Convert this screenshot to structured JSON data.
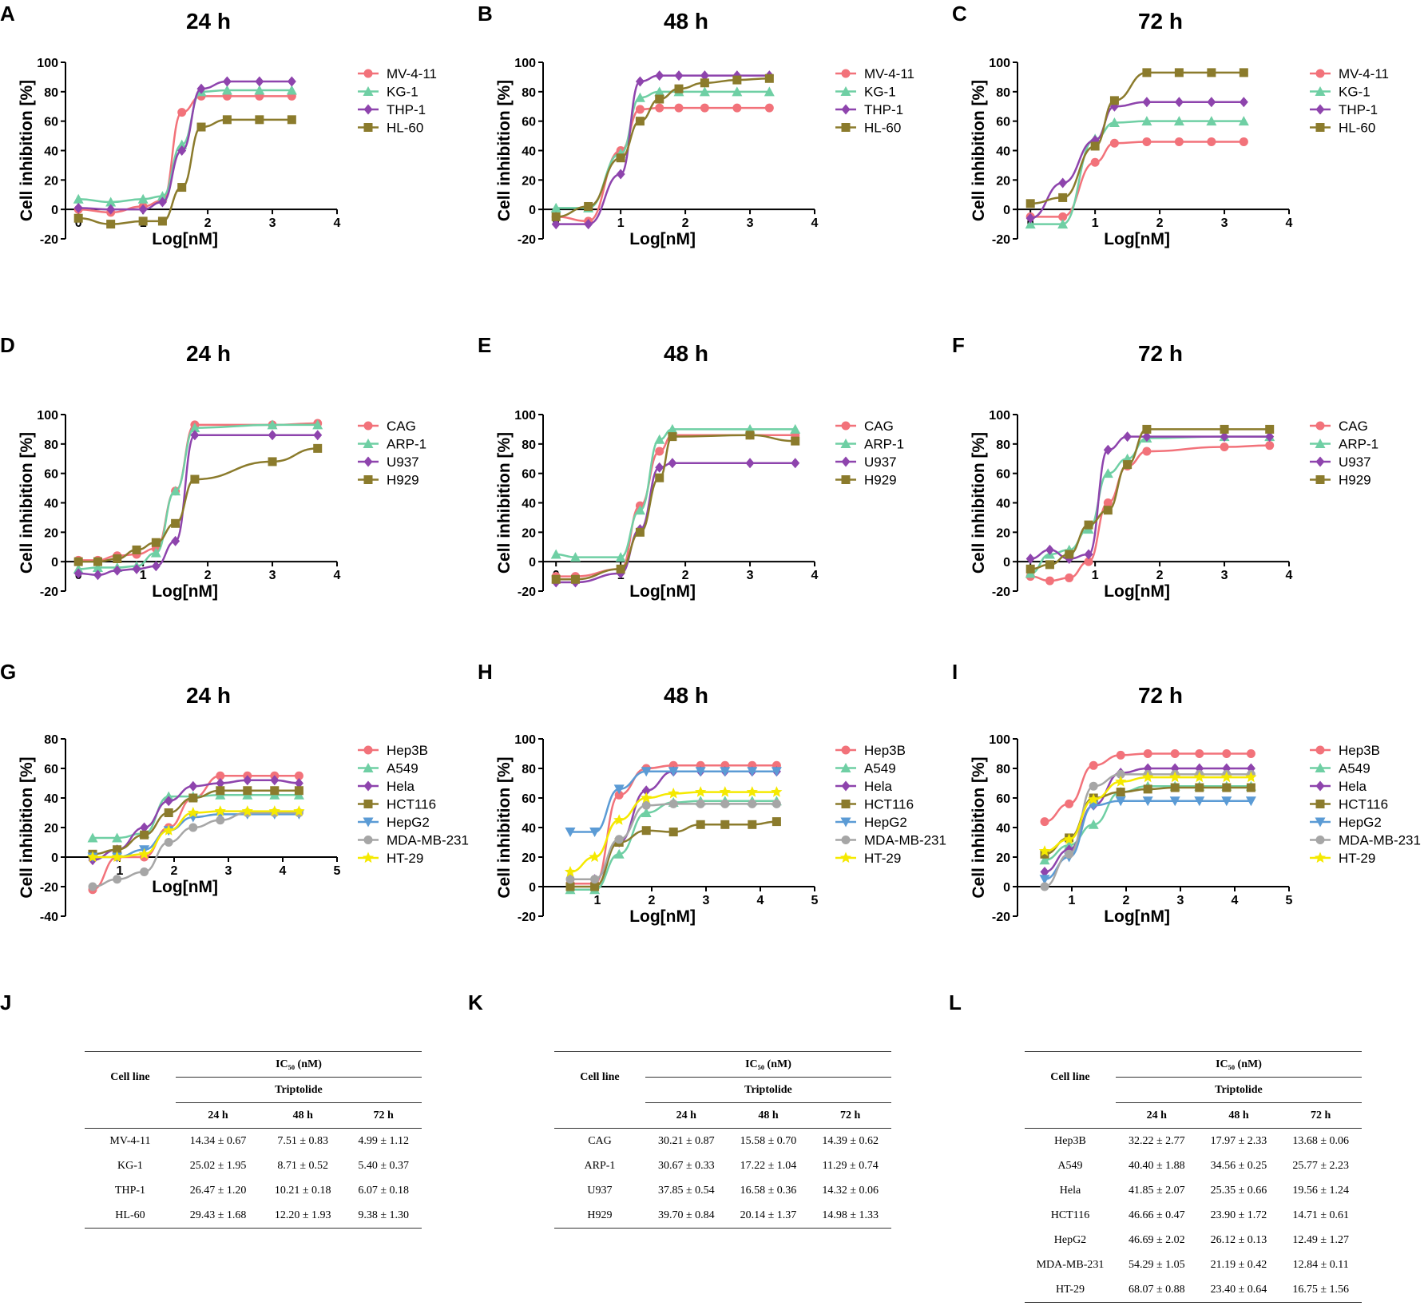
{
  "figure": {
    "axis_title_y": "Cell inhibition [%]",
    "axis_title_x": "Log[nM]"
  },
  "colors": [
    "#f2727a",
    "#6fcfa4",
    "#8e44ad",
    "#8b7b2c",
    "#5b9bd5",
    "#a6a6a6",
    "#f5e900"
  ],
  "markers": [
    "circle",
    "triangle-up",
    "diamond",
    "square",
    "triangle-down",
    "circle",
    "star"
  ],
  "chart_data": [
    {
      "panel": "A",
      "type": "line",
      "title": "24 h",
      "xlabel": "Log[nM]",
      "ylabel": "Cell inhibition [%]",
      "xlim": [
        -0.2,
        4
      ],
      "ylim": [
        -20,
        100
      ],
      "xticks": [
        0,
        1,
        2,
        3,
        4
      ],
      "yticks": [
        -20,
        0,
        20,
        40,
        60,
        80,
        100
      ],
      "x": [
        0,
        0.5,
        1,
        1.3,
        1.6,
        1.9,
        2.3,
        2.8,
        3.3
      ],
      "series": [
        {
          "name": "MV-4-11",
          "values": [
            0,
            -2,
            2,
            6,
            66,
            77,
            77,
            77,
            77
          ]
        },
        {
          "name": "KG-1",
          "values": [
            7,
            5,
            7,
            9,
            44,
            80,
            81,
            81,
            81
          ]
        },
        {
          "name": "THP-1",
          "values": [
            1,
            0,
            0,
            5,
            40,
            82,
            87,
            87,
            87
          ]
        },
        {
          "name": "HL-60",
          "values": [
            -6,
            -10,
            -8,
            -8,
            15,
            56,
            61,
            61,
            61
          ]
        }
      ]
    },
    {
      "panel": "B",
      "type": "line",
      "title": "48 h",
      "xlabel": "Log[nM]",
      "ylabel": "Cell inhibition [%]",
      "xlim": [
        -0.2,
        4
      ],
      "ylim": [
        -20,
        100
      ],
      "xticks": [
        0,
        1,
        2,
        3,
        4
      ],
      "yticks": [
        -20,
        0,
        20,
        40,
        60,
        80,
        100
      ],
      "x": [
        0,
        0.5,
        1,
        1.3,
        1.6,
        1.9,
        2.3,
        2.8,
        3.3
      ],
      "series": [
        {
          "name": "MV-4-11",
          "values": [
            -5,
            -8,
            40,
            68,
            69,
            69,
            69,
            69,
            69
          ]
        },
        {
          "name": "KG-1",
          "values": [
            1,
            1,
            38,
            76,
            80,
            80,
            80,
            80,
            80
          ]
        },
        {
          "name": "THP-1",
          "values": [
            -10,
            -10,
            24,
            87,
            91,
            91,
            91,
            91,
            91
          ]
        },
        {
          "name": "HL-60",
          "values": [
            -5,
            2,
            35,
            60,
            75,
            82,
            86,
            88,
            89
          ]
        }
      ]
    },
    {
      "panel": "C",
      "type": "line",
      "title": "72 h",
      "xlabel": "Log[nM]",
      "ylabel": "Cell inhibition [%]",
      "xlim": [
        -0.2,
        4
      ],
      "ylim": [
        -20,
        100
      ],
      "xticks": [
        0,
        1,
        2,
        3,
        4
      ],
      "yticks": [
        -20,
        0,
        20,
        40,
        60,
        80,
        100
      ],
      "x": [
        0,
        0.5,
        1,
        1.3,
        1.8,
        2.3,
        2.8,
        3.3
      ],
      "series": [
        {
          "name": "MV-4-11",
          "values": [
            -5,
            -5,
            32,
            45,
            46,
            46,
            46,
            46
          ]
        },
        {
          "name": "KG-1",
          "values": [
            -10,
            -10,
            48,
            59,
            60,
            60,
            60,
            60
          ]
        },
        {
          "name": "THP-1",
          "values": [
            -6,
            18,
            47,
            70,
            73,
            73,
            73,
            73
          ]
        },
        {
          "name": "HL-60",
          "values": [
            4,
            8,
            43,
            74,
            93,
            93,
            93,
            93
          ]
        }
      ]
    },
    {
      "panel": "D",
      "type": "line",
      "title": "24 h",
      "xlabel": "Log[nM]",
      "ylabel": "Cell inhibition [%]",
      "xlim": [
        -0.2,
        4
      ],
      "ylim": [
        -20,
        100
      ],
      "xticks": [
        0,
        1,
        2,
        3,
        4
      ],
      "yticks": [
        -20,
        0,
        20,
        40,
        60,
        80,
        100
      ],
      "x": [
        0,
        0.3,
        0.6,
        0.9,
        1.2,
        1.5,
        1.8,
        3,
        3.7
      ],
      "series": [
        {
          "name": "CAG",
          "values": [
            1,
            1,
            4,
            5,
            9,
            48,
            93,
            93,
            94
          ]
        },
        {
          "name": "ARP-1",
          "values": [
            -5,
            -4,
            -4,
            -3,
            6,
            48,
            91,
            93,
            93
          ]
        },
        {
          "name": "U937",
          "values": [
            -8,
            -9,
            -6,
            -5,
            -3,
            14,
            86,
            86,
            86
          ]
        },
        {
          "name": "H929",
          "values": [
            0,
            0,
            2,
            8,
            13,
            26,
            56,
            68,
            77
          ]
        }
      ]
    },
    {
      "panel": "E",
      "type": "line",
      "title": "48 h",
      "xlabel": "Log[nM]",
      "ylabel": "Cell inhibition [%]",
      "xlim": [
        -0.2,
        4
      ],
      "ylim": [
        -20,
        100
      ],
      "xticks": [
        0,
        1,
        2,
        3,
        4
      ],
      "yticks": [
        -20,
        0,
        20,
        40,
        60,
        80,
        100
      ],
      "x": [
        0,
        0.3,
        1,
        1.3,
        1.6,
        1.8,
        3,
        3.7
      ],
      "series": [
        {
          "name": "CAG",
          "values": [
            -10,
            -10,
            -5,
            38,
            75,
            86,
            86,
            86
          ]
        },
        {
          "name": "ARP-1",
          "values": [
            5,
            3,
            3,
            35,
            83,
            90,
            90,
            90
          ]
        },
        {
          "name": "U937",
          "values": [
            -14,
            -14,
            -8,
            22,
            64,
            67,
            67,
            67
          ]
        },
        {
          "name": "H929",
          "values": [
            -12,
            -12,
            -5,
            20,
            57,
            85,
            86,
            82
          ]
        }
      ]
    },
    {
      "panel": "F",
      "type": "line",
      "title": "72 h",
      "xlabel": "Log[nM]",
      "ylabel": "Cell inhibition [%]",
      "xlim": [
        -0.2,
        4
      ],
      "ylim": [
        -20,
        100
      ],
      "xticks": [
        0,
        1,
        2,
        3,
        4
      ],
      "yticks": [
        -20,
        0,
        20,
        40,
        60,
        80,
        100
      ],
      "x": [
        0,
        0.3,
        0.6,
        0.9,
        1.2,
        1.5,
        1.8,
        3,
        3.7
      ],
      "series": [
        {
          "name": "CAG",
          "values": [
            -10,
            -13,
            -11,
            0,
            40,
            65,
            75,
            78,
            79
          ]
        },
        {
          "name": "ARP-1",
          "values": [
            -8,
            5,
            8,
            22,
            60,
            70,
            84,
            85,
            85
          ]
        },
        {
          "name": "U937",
          "values": [
            2,
            8,
            2,
            5,
            76,
            85,
            85,
            85,
            85
          ]
        },
        {
          "name": "H929",
          "values": [
            -5,
            -2,
            5,
            25,
            35,
            66,
            90,
            90,
            90
          ]
        }
      ]
    },
    {
      "panel": "G",
      "type": "line",
      "title": "24 h",
      "xlabel": "Log[nM]",
      "ylabel": "Cell inhibition [%]",
      "xlim": [
        0,
        5
      ],
      "ylim": [
        -40,
        80
      ],
      "xticks": [
        1,
        2,
        3,
        4,
        5
      ],
      "yticks": [
        -40,
        -20,
        0,
        20,
        40,
        60,
        80
      ],
      "x": [
        0.5,
        0.95,
        1.45,
        1.9,
        2.35,
        2.85,
        3.35,
        3.85,
        4.3
      ],
      "series": [
        {
          "name": "Hep3B",
          "values": [
            -22,
            0,
            0,
            20,
            40,
            55,
            55,
            55,
            55
          ]
        },
        {
          "name": "A549",
          "values": [
            13,
            13,
            16,
            41,
            41,
            42,
            42,
            42,
            42
          ]
        },
        {
          "name": "Hela",
          "values": [
            -2,
            5,
            20,
            38,
            48,
            50,
            52,
            52,
            50
          ]
        },
        {
          "name": "HCT116",
          "values": [
            2,
            5,
            15,
            30,
            40,
            45,
            45,
            45,
            45
          ]
        },
        {
          "name": "HepG2",
          "values": [
            0,
            0,
            5,
            18,
            27,
            29,
            29,
            29,
            29
          ]
        },
        {
          "name": "MDA-MB-231",
          "values": [
            -20,
            -15,
            -10,
            10,
            20,
            25,
            30,
            30,
            30
          ]
        },
        {
          "name": "HT-29",
          "values": [
            0,
            0,
            2,
            18,
            30,
            31,
            31,
            31,
            31
          ]
        }
      ]
    },
    {
      "panel": "H",
      "type": "line",
      "title": "48 h",
      "xlabel": "Log[nM]",
      "ylabel": "Cell inhibition [%]",
      "xlim": [
        0,
        5
      ],
      "ylim": [
        -20,
        100
      ],
      "xticks": [
        1,
        2,
        3,
        4,
        5
      ],
      "yticks": [
        -20,
        0,
        20,
        40,
        60,
        80,
        100
      ],
      "x": [
        0.5,
        0.95,
        1.4,
        1.9,
        2.4,
        2.9,
        3.35,
        3.85,
        4.3
      ],
      "series": [
        {
          "name": "Hep3B",
          "values": [
            2,
            2,
            62,
            80,
            82,
            82,
            82,
            82,
            82
          ]
        },
        {
          "name": "A549",
          "values": [
            -2,
            -2,
            22,
            50,
            57,
            58,
            58,
            58,
            58
          ]
        },
        {
          "name": "Hela",
          "values": [
            5,
            5,
            30,
            65,
            78,
            78,
            78,
            78,
            78
          ]
        },
        {
          "name": "HCT116",
          "values": [
            0,
            0,
            30,
            38,
            37,
            42,
            42,
            42,
            44
          ]
        },
        {
          "name": "HepG2",
          "values": [
            37,
            37,
            66,
            78,
            78,
            78,
            78,
            78,
            78
          ]
        },
        {
          "name": "MDA-MB-231",
          "values": [
            5,
            5,
            32,
            55,
            56,
            56,
            56,
            56,
            56
          ]
        },
        {
          "name": "HT-29",
          "values": [
            10,
            20,
            45,
            60,
            63,
            64,
            64,
            64,
            64
          ]
        }
      ]
    },
    {
      "panel": "I",
      "type": "line",
      "title": "72 h",
      "xlabel": "Log[nM]",
      "ylabel": "Cell inhibition [%]",
      "xlim": [
        0,
        5
      ],
      "ylim": [
        -20,
        100
      ],
      "xticks": [
        1,
        2,
        3,
        4,
        5
      ],
      "yticks": [
        -20,
        0,
        20,
        40,
        60,
        80,
        100
      ],
      "x": [
        0.5,
        0.95,
        1.4,
        1.9,
        2.4,
        2.9,
        3.35,
        3.85,
        4.3
      ],
      "series": [
        {
          "name": "Hep3B",
          "values": [
            44,
            56,
            82,
            89,
            90,
            90,
            90,
            90,
            90
          ]
        },
        {
          "name": "A549",
          "values": [
            18,
            28,
            42,
            64,
            68,
            68,
            68,
            68,
            68
          ]
        },
        {
          "name": "Hela",
          "values": [
            10,
            25,
            55,
            77,
            80,
            80,
            80,
            80,
            80
          ]
        },
        {
          "name": "HCT116",
          "values": [
            22,
            33,
            60,
            64,
            66,
            67,
            67,
            67,
            67
          ]
        },
        {
          "name": "HepG2",
          "values": [
            5,
            20,
            55,
            58,
            58,
            58,
            58,
            58,
            58
          ]
        },
        {
          "name": "MDA-MB-231",
          "values": [
            0,
            22,
            68,
            76,
            76,
            76,
            76,
            76,
            76
          ]
        },
        {
          "name": "HT-29",
          "values": [
            24,
            32,
            59,
            71,
            74,
            74,
            74,
            74,
            74
          ]
        }
      ]
    }
  ],
  "tables": [
    {
      "panel": "J",
      "header_main": "IC₅₀ (nM)",
      "header_col": "Cell line",
      "header_drug": "Triptolide",
      "time_headers": [
        "24 h",
        "48 h",
        "72 h"
      ],
      "rows": [
        {
          "cell_line": "MV-4-11",
          "values": [
            "14.34 ± 0.67",
            "7.51 ± 0.83",
            "4.99 ± 1.12"
          ]
        },
        {
          "cell_line": "KG-1",
          "values": [
            "25.02 ± 1.95",
            "8.71 ± 0.52",
            "5.40 ± 0.37"
          ]
        },
        {
          "cell_line": "THP-1",
          "values": [
            "26.47 ± 1.20",
            "10.21 ± 0.18",
            "6.07 ± 0.18"
          ]
        },
        {
          "cell_line": "HL-60",
          "values": [
            "29.43 ± 1.68",
            "12.20 ± 1.93",
            "9.38 ± 1.30"
          ]
        }
      ]
    },
    {
      "panel": "K",
      "header_main": "IC₅₀ (nM)",
      "header_col": "Cell line",
      "header_drug": "Triptolide",
      "time_headers": [
        "24 h",
        "48 h",
        "72 h"
      ],
      "rows": [
        {
          "cell_line": "CAG",
          "values": [
            "30.21 ± 0.87",
            "15.58 ± 0.70",
            "14.39 ± 0.62"
          ]
        },
        {
          "cell_line": "ARP-1",
          "values": [
            "30.67 ± 0.33",
            "17.22 ± 1.04",
            "11.29 ± 0.74"
          ]
        },
        {
          "cell_line": "U937",
          "values": [
            "37.85 ± 0.54",
            "16.58 ± 0.36",
            "14.32 ± 0.06"
          ]
        },
        {
          "cell_line": "H929",
          "values": [
            "39.70 ± 0.84",
            "20.14 ± 1.37",
            "14.98 ± 1.33"
          ]
        }
      ]
    },
    {
      "panel": "L",
      "header_main": "IC₅₀ (nM)",
      "header_col": "Cell line",
      "header_drug": "Triptolide",
      "time_headers": [
        "24 h",
        "48 h",
        "72 h"
      ],
      "rows": [
        {
          "cell_line": "Hep3B",
          "values": [
            "32.22 ± 2.77",
            "17.97 ± 2.33",
            "13.68 ± 0.06"
          ]
        },
        {
          "cell_line": "A549",
          "values": [
            "40.40 ± 1.88",
            "34.56 ± 0.25",
            "25.77 ± 2.23"
          ]
        },
        {
          "cell_line": "Hela",
          "values": [
            "41.85 ± 2.07",
            "25.35 ± 0.66",
            "19.56 ± 1.24"
          ]
        },
        {
          "cell_line": "HCT116",
          "values": [
            "46.66 ± 0.47",
            "23.90 ± 1.72",
            "14.71 ± 0.61"
          ]
        },
        {
          "cell_line": "HepG2",
          "values": [
            "46.69 ± 2.02",
            "26.12 ± 0.13",
            "12.49 ± 1.27"
          ]
        },
        {
          "cell_line": "MDA-MB-231",
          "values": [
            "54.29 ± 1.05",
            "21.19 ± 0.42",
            "12.84 ± 0.11"
          ]
        },
        {
          "cell_line": "HT-29",
          "values": [
            "68.07 ± 0.88",
            "23.40 ± 0.64",
            "16.75 ± 1.56"
          ]
        }
      ]
    }
  ]
}
